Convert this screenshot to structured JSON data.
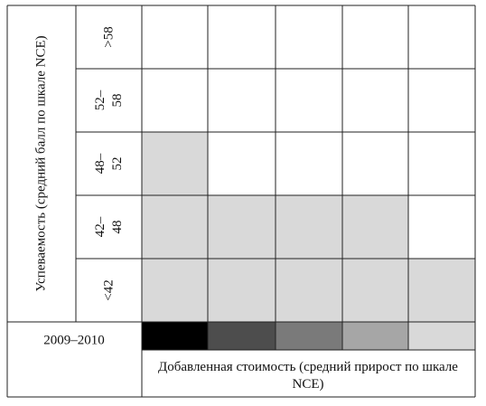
{
  "y_axis_label": "Успеваемость (средний балл по шкале NCE)",
  "row_labels": [
    ">58",
    "52–58",
    "48–52",
    "42–48",
    "<42"
  ],
  "cell_colors": [
    [
      "#ffffff",
      "#ffffff",
      "#ffffff",
      "#ffffff",
      "#ffffff"
    ],
    [
      "#ffffff",
      "#ffffff",
      "#ffffff",
      "#ffffff",
      "#ffffff"
    ],
    [
      "#d9d9d9",
      "#ffffff",
      "#ffffff",
      "#ffffff",
      "#ffffff"
    ],
    [
      "#d9d9d9",
      "#d9d9d9",
      "#d9d9d9",
      "#d9d9d9",
      "#ffffff"
    ],
    [
      "#d9d9d9",
      "#d9d9d9",
      "#d9d9d9",
      "#d9d9d9",
      "#d9d9d9"
    ]
  ],
  "year_label": "2009–2010",
  "scale_colors": [
    "#000000",
    "#4d4d4d",
    "#7a7a7a",
    "#a6a6a6",
    "#d9d9d9"
  ],
  "x_axis_label": "Добавленная стоимость (средний прирост по шкале NCE)"
}
